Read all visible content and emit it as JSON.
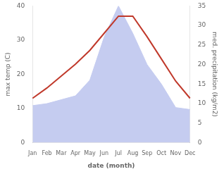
{
  "chart_data": {
    "type": "line",
    "xlabel": "date (month)",
    "ylabel": "max temp (C)",
    "y2label": "med. precipitation (kg/m2)",
    "categories": [
      "Jan",
      "Feb",
      "Mar",
      "Apr",
      "May",
      "Jun",
      "Jul",
      "Aug",
      "Sep",
      "Oct",
      "Nov",
      "Dec"
    ],
    "series": [
      {
        "type": "area",
        "axis": "y2",
        "color": "#c5ccf0",
        "values": [
          9.5,
          10.0,
          11.0,
          12.0,
          16.0,
          27.0,
          35.0,
          28.0,
          20.0,
          15.0,
          9.0,
          8.5
        ]
      },
      {
        "type": "line",
        "axis": "y",
        "color": "#c0392b",
        "values": [
          13.0,
          16.0,
          19.5,
          23.0,
          27.0,
          32.0,
          37.0,
          37.0,
          31.0,
          24.5,
          18.0,
          13.0
        ]
      }
    ],
    "ylim": [
      0,
      40
    ],
    "yticks": [
      0,
      10,
      20,
      30,
      40
    ],
    "y2lim": [
      0,
      35
    ],
    "y2ticks": [
      0,
      5,
      10,
      15,
      20,
      25,
      30,
      35
    ],
    "grid": false
  }
}
